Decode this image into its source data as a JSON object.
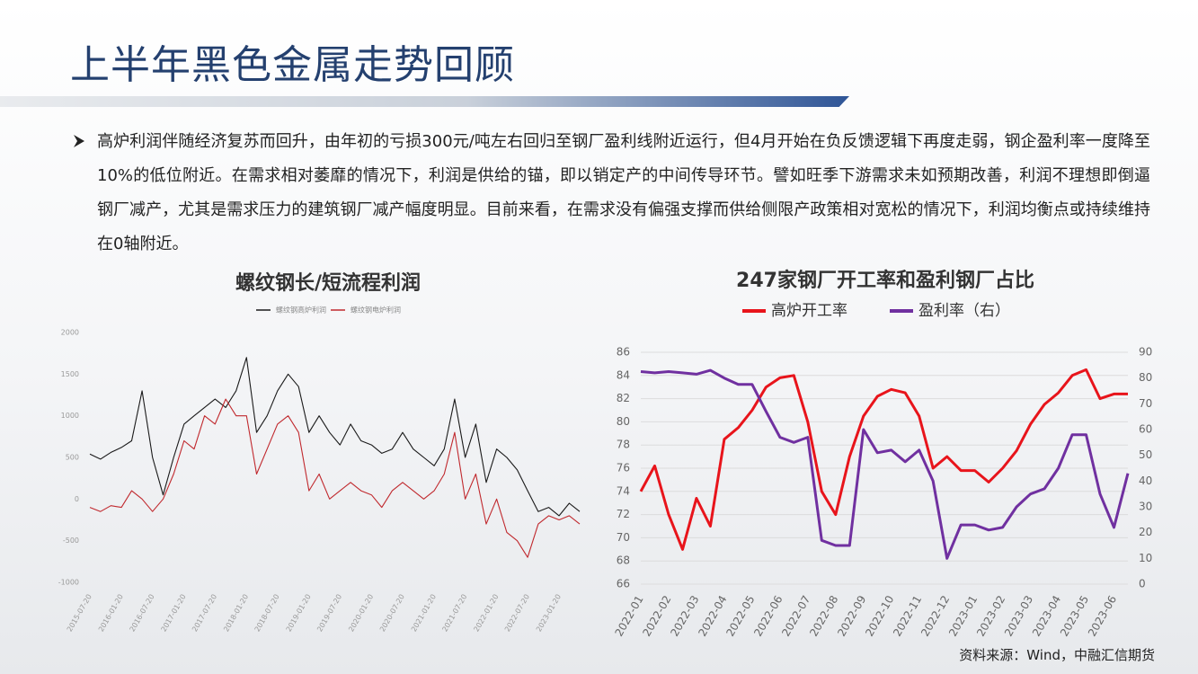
{
  "title": "上半年黑色金属走势回顾",
  "bullet": "高炉利润伴随经济复苏而回升，由年初的亏损300元/吨左右回归至钢厂盈利线附近运行，但4月开始在负反馈逻辑下再度走弱，钢企盈利率一度降至10%的低位附近。在需求相对萎靡的情况下，利润是供给的锚，即以销定产的中间传导环节。譬如旺季下游需求未如预期改善，利润不理想即倒逼钢厂减产，尤其是需求压力的建筑钢厂减产幅度明显。目前来看，在需求没有偏强支撑而供给侧限产政策相对宽松的情况下，利润均衡点或持续维持在0轴附近。",
  "source": "资料来源：Wind，中融汇信期货",
  "chart_data": [
    {
      "type": "line",
      "title": "螺纹钢长/短流程利润",
      "grid": false,
      "x": [
        "2015-07-20",
        "2015-09-20",
        "2015-11-20",
        "2016-01-20",
        "2016-03-20",
        "2016-05-20",
        "2016-07-20",
        "2016-09-20",
        "2016-11-20",
        "2017-01-20",
        "2017-03-20",
        "2017-05-20",
        "2017-07-20",
        "2017-09-20",
        "2017-11-20",
        "2018-01-20",
        "2018-03-20",
        "2018-05-20",
        "2018-07-20",
        "2018-09-20",
        "2018-11-20",
        "2019-01-20",
        "2019-03-20",
        "2019-05-20",
        "2019-07-20",
        "2019-09-20",
        "2019-11-20",
        "2020-01-20",
        "2020-03-20",
        "2020-05-20",
        "2020-07-20",
        "2020-09-20",
        "2020-11-20",
        "2021-01-20",
        "2021-03-20",
        "2021-05-20",
        "2021-07-20",
        "2021-09-20",
        "2021-11-20",
        "2022-01-20",
        "2022-03-20",
        "2022-05-20",
        "2022-07-20",
        "2022-09-20",
        "2022-11-20",
        "2023-01-20",
        "2023-03-20",
        "2023-05-20"
      ],
      "xticks": [
        "2015-07-20",
        "2016-01-20",
        "2016-07-20",
        "2017-01-20",
        "2017-07-20",
        "2018-01-20",
        "2018-07-20",
        "2019-01-20",
        "2019-07-20",
        "2020-01-20",
        "2020-07-20",
        "2021-01-20",
        "2021-07-20",
        "2022-01-20",
        "2022-07-20",
        "2023-01-20"
      ],
      "ylim": [
        -1000,
        2000
      ],
      "yticks": [
        -1000,
        -500,
        0,
        500,
        1000,
        1500,
        2000
      ],
      "series": [
        {
          "name": "螺纹钢高炉利润",
          "color": "#1a1a1a",
          "values": [
            540,
            480,
            560,
            620,
            700,
            1300,
            500,
            50,
            500,
            900,
            1000,
            1100,
            1200,
            1100,
            1300,
            1700,
            800,
            1000,
            1300,
            1500,
            1350,
            800,
            1000,
            800,
            650,
            900,
            700,
            650,
            550,
            600,
            800,
            600,
            500,
            400,
            600,
            1200,
            500,
            900,
            200,
            600,
            500,
            350,
            100,
            -150,
            -100,
            -200,
            -50,
            -150
          ]
        },
        {
          "name": "螺纹钢电炉利润",
          "color": "#c0282d",
          "values": [
            -100,
            -150,
            -80,
            -100,
            100,
            0,
            -150,
            0,
            300,
            700,
            600,
            1000,
            900,
            1200,
            1000,
            1000,
            300,
            600,
            900,
            1000,
            800,
            100,
            300,
            0,
            100,
            200,
            100,
            50,
            -100,
            100,
            200,
            100,
            0,
            100,
            300,
            800,
            0,
            300,
            -300,
            0,
            -400,
            -500,
            -700,
            -300,
            -200,
            -250,
            -200,
            -300
          ]
        }
      ]
    },
    {
      "type": "line",
      "title": "247家钢厂开工率和盈利钢厂占比",
      "grid": true,
      "categories": [
        "2022-01",
        null,
        "2022-02",
        null,
        "2022-03",
        null,
        "2022-04",
        null,
        "2022-05",
        null,
        "2022-06",
        null,
        "2022-07",
        null,
        "2022-08",
        null,
        "2022-09",
        null,
        "2022-10",
        null,
        "2022-11",
        null,
        "2022-12",
        null,
        "2023-01",
        null,
        "2023-02",
        null,
        "2023-03",
        null,
        "2023-04",
        null,
        "2023-05",
        null,
        "2023-06",
        null
      ],
      "ylim": [
        66,
        86
      ],
      "yticks": [
        66,
        68,
        70,
        72,
        74,
        76,
        78,
        80,
        82,
        84,
        86
      ],
      "y2lim": [
        0,
        90
      ],
      "y2ticks": [
        0,
        10,
        20,
        30,
        40,
        50,
        60,
        70,
        80,
        90
      ],
      "series": [
        {
          "name": "高炉开工率",
          "color": "#e8141b",
          "values": [
            74,
            76.2,
            72,
            69,
            73.4,
            71,
            78.5,
            79.5,
            81,
            83,
            83.8,
            84,
            80,
            74,
            72,
            77,
            80.5,
            82.2,
            82.8,
            82.5,
            80.5,
            76,
            77,
            75.8,
            75.8,
            74.8,
            76,
            77.5,
            79.8,
            81.5,
            82.5,
            84,
            84.5,
            82,
            82.4,
            82.4
          ]
        },
        {
          "name": "盈利率（右）",
          "color": "#7030a0",
          "axis": "y2",
          "values": [
            82.5,
            82,
            82.5,
            82,
            81.5,
            83,
            80,
            77.5,
            77.5,
            67,
            57,
            55,
            57,
            17,
            15,
            15,
            60,
            51,
            52,
            47.5,
            52,
            40,
            10,
            23,
            23,
            21,
            22,
            30,
            35,
            37,
            45,
            58,
            58,
            35,
            22,
            43
          ]
        }
      ]
    }
  ]
}
